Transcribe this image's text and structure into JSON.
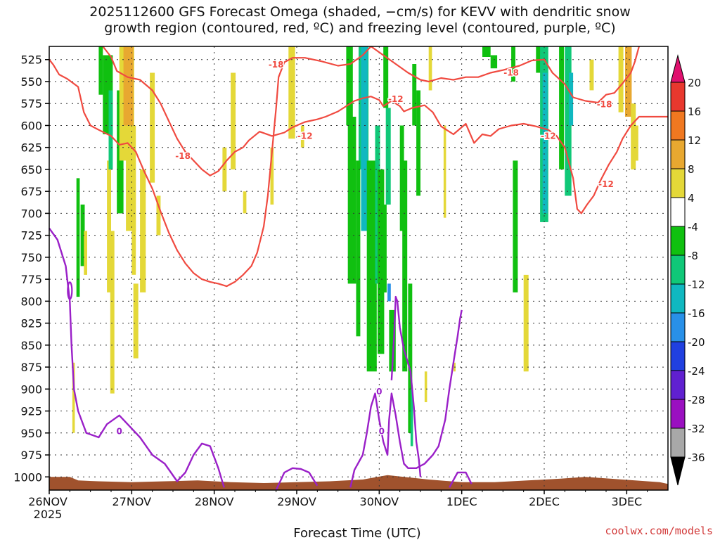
{
  "title": {
    "line1": "2025112600 GFS Forecast Omega (shaded, −cm/s) for KEVV with dendritic snow",
    "line2": "growth region (contoured, red, ºC) and freezing level (contoured, purple, ºC)"
  },
  "xlabel": "Forecast Time (UTC)",
  "credit": "coolwx.com/models",
  "colors": {
    "dgz_contour": "#f04a40",
    "freezing_contour": "#9a20c8",
    "terrain": "#a0522d",
    "grid": "#333333"
  },
  "chart_data": {
    "type": "heatmap",
    "title": "2025112600 GFS Forecast Omega (shaded, −cm/s) for KEVV with dendritic snow growth region (contoured, red, ºC) and freezing level (contoured, purple, ºC)",
    "xlabel": "Forecast Time (UTC)",
    "ylabel": "",
    "x_ticks": [
      "26NOV",
      "27NOV",
      "28NOV",
      "29NOV",
      "30NOV",
      "1DEC",
      "2DEC",
      "3DEC"
    ],
    "x_year_label": "2025",
    "x_range_days": [
      0,
      7.5
    ],
    "y_ticks": [
      525,
      550,
      575,
      600,
      625,
      650,
      675,
      700,
      725,
      750,
      775,
      800,
      825,
      850,
      875,
      900,
      925,
      950,
      975,
      1000
    ],
    "y_range_hpa": [
      1015,
      510
    ],
    "colorbar": {
      "labels": [
        20,
        16,
        12,
        8,
        4,
        -4,
        -8,
        -12,
        -16,
        -20,
        -24,
        -28,
        -32,
        -36
      ],
      "bands": [
        {
          "from": 16,
          "to": 20,
          "color": "#e8382e"
        },
        {
          "from": 12,
          "to": 16,
          "color": "#f07820"
        },
        {
          "from": 8,
          "to": 12,
          "color": "#e8a830"
        },
        {
          "from": 4,
          "to": 8,
          "color": "#e4d838"
        },
        {
          "from": -4,
          "to": 4,
          "color": "#ffffff"
        },
        {
          "from": -8,
          "to": -4,
          "color": "#10c010"
        },
        {
          "from": -12,
          "to": -8,
          "color": "#10c878"
        },
        {
          "from": -16,
          "to": -12,
          "color": "#10b8c0"
        },
        {
          "from": -20,
          "to": -16,
          "color": "#2890e8"
        },
        {
          "from": -24,
          "to": -20,
          "color": "#2040e0"
        },
        {
          "from": -28,
          "to": -24,
          "color": "#6020d0"
        },
        {
          "from": -32,
          "to": -28,
          "color": "#9a10c0"
        },
        {
          "from": -36,
          "to": -32,
          "color": "#a8a8a8"
        }
      ],
      "top_arrow_color": "#e0106e",
      "bottom_arrow_color": "#000000"
    },
    "contour_labels": {
      "dgz": [
        "-18",
        "-18",
        "-18",
        "-18",
        "-12",
        "-12",
        "-12",
        "-12"
      ],
      "freezing": [
        "0",
        "0",
        "0"
      ]
    },
    "dgz_contours_hpa": [
      {
        "name": "-18",
        "points": [
          [
            0.0,
            525
          ],
          [
            0.05,
            531
          ],
          [
            0.12,
            542
          ],
          [
            0.22,
            547
          ],
          [
            0.35,
            556
          ],
          [
            0.42,
            585
          ],
          [
            0.5,
            600
          ],
          [
            0.6,
            605
          ],
          [
            0.75,
            612
          ],
          [
            0.85,
            622
          ],
          [
            0.95,
            620
          ],
          [
            1.05,
            630
          ],
          [
            1.15,
            652
          ],
          [
            1.25,
            672
          ],
          [
            1.35,
            698
          ],
          [
            1.45,
            722
          ],
          [
            1.55,
            742
          ],
          [
            1.65,
            757
          ],
          [
            1.75,
            768
          ],
          [
            1.85,
            775
          ],
          [
            1.95,
            778
          ],
          [
            2.05,
            780
          ],
          [
            2.15,
            783
          ],
          [
            2.25,
            778
          ],
          [
            2.35,
            770
          ],
          [
            2.45,
            760
          ],
          [
            2.52,
            745
          ],
          [
            2.6,
            715
          ],
          [
            2.65,
            680
          ],
          [
            2.7,
            630
          ],
          [
            2.75,
            580
          ],
          [
            2.78,
            545
          ],
          [
            2.85,
            528
          ],
          [
            2.95,
            523
          ],
          [
            3.1,
            523
          ],
          [
            3.3,
            527
          ],
          [
            3.5,
            532
          ],
          [
            3.65,
            530
          ],
          [
            3.8,
            520
          ],
          [
            3.9,
            510
          ]
        ]
      },
      {
        "name": "-18",
        "points": [
          [
            0.65,
            510
          ],
          [
            0.75,
            522
          ],
          [
            0.82,
            538
          ],
          [
            0.95,
            545
          ],
          [
            1.1,
            548
          ],
          [
            1.25,
            560
          ],
          [
            1.35,
            575
          ],
          [
            1.45,
            595
          ],
          [
            1.55,
            615
          ],
          [
            1.65,
            630
          ],
          [
            1.75,
            640
          ],
          [
            1.85,
            650
          ],
          [
            1.95,
            657
          ],
          [
            2.05,
            652
          ],
          [
            2.15,
            640
          ],
          [
            2.25,
            630
          ],
          [
            2.35,
            625
          ]
        ]
      },
      {
        "name": "-12",
        "points": [
          [
            2.35,
            625
          ],
          [
            2.42,
            617
          ],
          [
            2.55,
            607
          ],
          [
            2.7,
            612
          ],
          [
            2.85,
            608
          ],
          [
            2.95,
            602
          ],
          [
            3.1,
            596
          ],
          [
            3.25,
            593
          ],
          [
            3.35,
            590
          ],
          [
            3.5,
            584
          ],
          [
            3.6,
            578
          ],
          [
            3.7,
            572
          ],
          [
            3.8,
            569
          ],
          [
            3.9,
            567
          ],
          [
            4.0,
            571
          ],
          [
            4.05,
            578
          ],
          [
            4.15,
            572
          ],
          [
            4.25,
            578
          ],
          [
            4.3,
            584
          ],
          [
            4.4,
            580
          ],
          [
            4.55,
            577
          ],
          [
            4.65,
            585
          ],
          [
            4.75,
            601
          ],
          [
            4.9,
            610
          ],
          [
            5.05,
            598
          ],
          [
            5.15,
            620
          ],
          [
            5.25,
            610
          ],
          [
            5.35,
            612
          ],
          [
            5.45,
            604
          ],
          [
            5.6,
            600
          ],
          [
            5.75,
            598
          ],
          [
            5.9,
            601
          ],
          [
            6.05,
            605
          ],
          [
            6.15,
            612
          ],
          [
            6.25,
            625
          ],
          [
            6.35,
            660
          ],
          [
            6.4,
            695
          ],
          [
            6.45,
            700
          ],
          [
            6.52,
            690
          ],
          [
            6.6,
            680
          ],
          [
            6.68,
            663
          ]
        ]
      },
      {
        "name": "-18",
        "points": [
          [
            3.9,
            510
          ],
          [
            4.05,
            520
          ],
          [
            4.2,
            530
          ],
          [
            4.35,
            540
          ],
          [
            4.5,
            548
          ],
          [
            4.6,
            550
          ],
          [
            4.75,
            546
          ],
          [
            4.9,
            548
          ],
          [
            5.05,
            545
          ],
          [
            5.2,
            545
          ],
          [
            5.35,
            540
          ],
          [
            5.5,
            537
          ],
          [
            5.7,
            532
          ],
          [
            5.85,
            526
          ],
          [
            6.0,
            525
          ],
          [
            6.1,
            540
          ],
          [
            6.25,
            553
          ],
          [
            6.35,
            568
          ],
          [
            6.5,
            572
          ],
          [
            6.65,
            574
          ],
          [
            6.75,
            565
          ],
          [
            6.85,
            563
          ],
          [
            6.95,
            552
          ],
          [
            7.05,
            540
          ],
          [
            7.1,
            527
          ],
          [
            7.15,
            510
          ]
        ]
      },
      {
        "name": "-12",
        "points": [
          [
            6.68,
            663
          ],
          [
            6.78,
            645
          ],
          [
            6.88,
            630
          ],
          [
            6.95,
            615
          ],
          [
            7.05,
            600
          ],
          [
            7.15,
            590
          ],
          [
            7.3,
            590
          ],
          [
            7.5,
            590
          ]
        ]
      }
    ],
    "freezing_contours_hpa": [
      {
        "name": "0",
        "points": [
          [
            0.0,
            717
          ],
          [
            0.1,
            730
          ],
          [
            0.2,
            760
          ],
          [
            0.25,
            800
          ],
          [
            0.27,
            850
          ],
          [
            0.3,
            900
          ],
          [
            0.35,
            925
          ],
          [
            0.45,
            950
          ],
          [
            0.6,
            955
          ],
          [
            0.7,
            940
          ],
          [
            0.85,
            930
          ],
          [
            0.95,
            940
          ],
          [
            1.1,
            955
          ],
          [
            1.25,
            975
          ],
          [
            1.4,
            985
          ],
          [
            1.55,
            1005
          ],
          [
            1.65,
            995
          ],
          [
            1.75,
            975
          ],
          [
            1.85,
            962
          ],
          [
            1.95,
            965
          ],
          [
            2.05,
            990
          ],
          [
            2.12,
            1012
          ]
        ]
      },
      {
        "name": "0",
        "points": [
          [
            2.75,
            1015
          ],
          [
            2.85,
            995
          ],
          [
            2.95,
            990
          ],
          [
            3.05,
            991
          ],
          [
            3.15,
            995
          ],
          [
            3.25,
            1010
          ]
        ]
      },
      {
        "name": "0",
        "points": [
          [
            3.65,
            1012
          ],
          [
            3.7,
            992
          ],
          [
            3.8,
            975
          ],
          [
            3.85,
            950
          ],
          [
            3.9,
            920
          ],
          [
            3.95,
            905
          ],
          [
            4.0,
            935
          ],
          [
            4.05,
            960
          ],
          [
            4.1,
            975
          ],
          [
            4.12,
            935
          ],
          [
            4.15,
            905
          ],
          [
            4.2,
            930
          ],
          [
            4.25,
            960
          ],
          [
            4.3,
            985
          ],
          [
            4.35,
            990
          ],
          [
            4.45,
            990
          ],
          [
            4.55,
            985
          ],
          [
            4.65,
            975
          ],
          [
            4.72,
            965
          ],
          [
            4.8,
            935
          ],
          [
            4.85,
            900
          ],
          [
            4.9,
            870
          ],
          [
            4.95,
            840
          ],
          [
            4.98,
            820
          ],
          [
            5.0,
            810
          ]
        ]
      },
      {
        "name": "0",
        "points": [
          [
            4.15,
            890
          ],
          [
            4.18,
            840
          ],
          [
            4.2,
            795
          ],
          [
            4.22,
            800
          ],
          [
            4.25,
            830
          ],
          [
            4.3,
            855
          ],
          [
            4.38,
            880
          ],
          [
            4.42,
            920
          ],
          [
            4.45,
            960
          ],
          [
            4.48,
            980
          ],
          [
            4.5,
            1000
          ]
        ]
      },
      {
        "name": "0",
        "points": [
          [
            4.85,
            1012
          ],
          [
            4.95,
            995
          ],
          [
            5.05,
            995
          ],
          [
            5.12,
            1008
          ]
        ]
      }
    ]
  }
}
